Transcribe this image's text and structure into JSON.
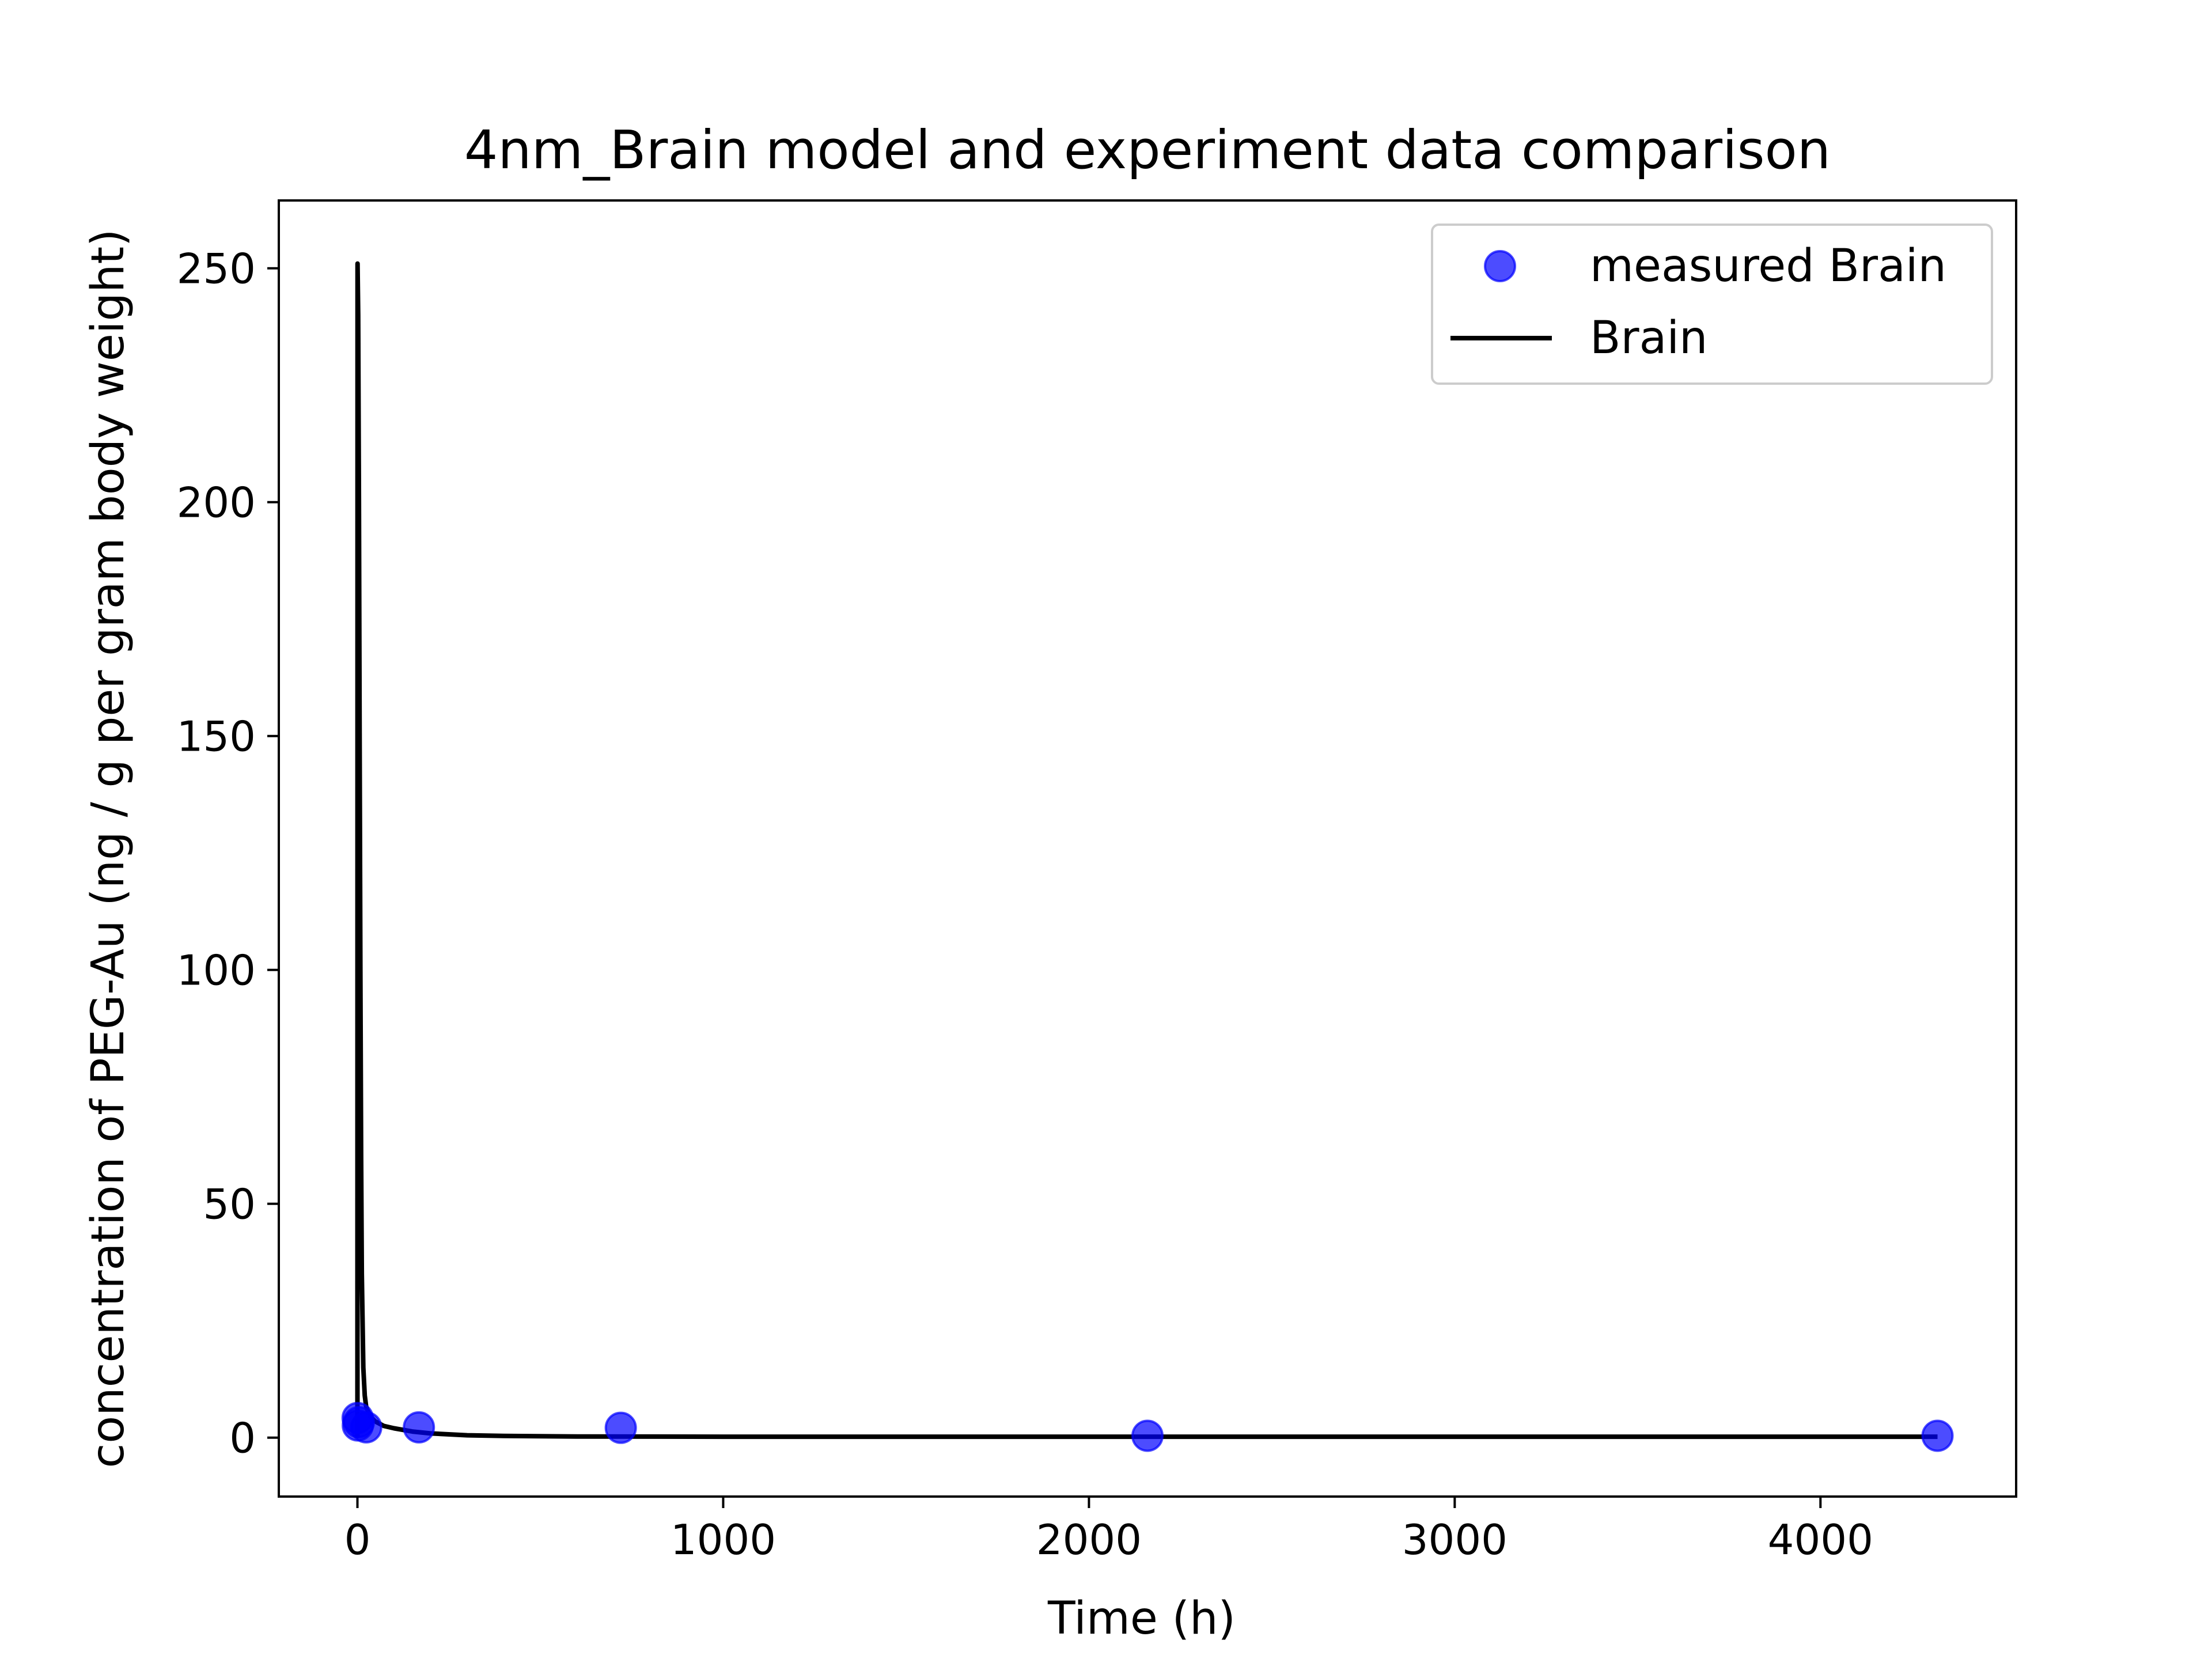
{
  "chart_data": {
    "type": "line",
    "title": "4nm_Brain model and experiment data comparison",
    "xlabel": "Time (h)",
    "ylabel": "concentration of PEG-Au (ng / g per gram body weight)",
    "xlim": [
      -215,
      4535
    ],
    "ylim": [
      -12.6,
      264.5
    ],
    "xticks": [
      {
        "value": 0,
        "label": "0"
      },
      {
        "value": 1000,
        "label": "1000"
      },
      {
        "value": 2000,
        "label": "2000"
      },
      {
        "value": 3000,
        "label": "3000"
      },
      {
        "value": 4000,
        "label": "4000"
      }
    ],
    "yticks": [
      {
        "value": 0,
        "label": "0"
      },
      {
        "value": 50,
        "label": "50"
      },
      {
        "value": 100,
        "label": "100"
      },
      {
        "value": 150,
        "label": "150"
      },
      {
        "value": 200,
        "label": "200"
      },
      {
        "value": 250,
        "label": "250"
      }
    ],
    "grid": false,
    "legend_position": "upper-right",
    "series": [
      {
        "name": "measured Brain",
        "kind": "scatter",
        "color": "#0000ff",
        "alpha": 0.7,
        "points": [
          {
            "x": 0.5,
            "y": 4.2
          },
          {
            "x": 1,
            "y": 2.6
          },
          {
            "x": 4,
            "y": 3.3
          },
          {
            "x": 24,
            "y": 2.2
          },
          {
            "x": 168,
            "y": 2.2
          },
          {
            "x": 720,
            "y": 2.1
          },
          {
            "x": 2160,
            "y": 0.4
          },
          {
            "x": 4320,
            "y": 0.4
          }
        ]
      },
      {
        "name": "Brain",
        "kind": "line",
        "color": "#000000",
        "points": [
          {
            "x": 0,
            "y": 0
          },
          {
            "x": 0.3,
            "y": 251
          },
          {
            "x": 2,
            "y": 240
          },
          {
            "x": 4,
            "y": 200
          },
          {
            "x": 6,
            "y": 150
          },
          {
            "x": 8,
            "y": 100
          },
          {
            "x": 10,
            "y": 60
          },
          {
            "x": 12,
            "y": 35
          },
          {
            "x": 16,
            "y": 15
          },
          {
            "x": 20,
            "y": 9
          },
          {
            "x": 24,
            "y": 6.5
          },
          {
            "x": 36,
            "y": 4.5
          },
          {
            "x": 48,
            "y": 3.5
          },
          {
            "x": 72,
            "y": 2.5
          },
          {
            "x": 100,
            "y": 2.0
          },
          {
            "x": 150,
            "y": 1.3
          },
          {
            "x": 200,
            "y": 0.9
          },
          {
            "x": 300,
            "y": 0.5
          },
          {
            "x": 400,
            "y": 0.35
          },
          {
            "x": 600,
            "y": 0.25
          },
          {
            "x": 1000,
            "y": 0.2
          },
          {
            "x": 2000,
            "y": 0.2
          },
          {
            "x": 3000,
            "y": 0.2
          },
          {
            "x": 4320,
            "y": 0.2
          }
        ]
      }
    ]
  }
}
